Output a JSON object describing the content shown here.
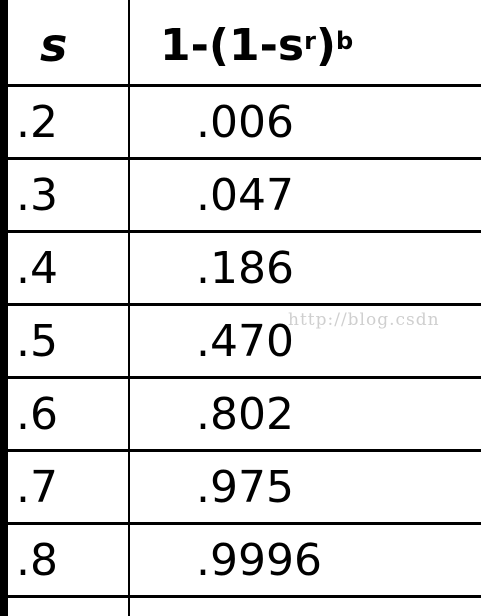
{
  "table": {
    "header_s": "s",
    "header_formula_prefix": "1-(1-s",
    "header_formula_sup_r": "r",
    "header_formula_close": ")",
    "header_formula_sup_b": "b",
    "rows": [
      {
        "s": ".2",
        "p": ".006"
      },
      {
        "s": ".3",
        "p": ".047"
      },
      {
        "s": ".4",
        "p": ".186"
      },
      {
        "s": ".5",
        "p": ".470"
      },
      {
        "s": ".6",
        "p": ".802"
      },
      {
        "s": ".7",
        "p": ".975"
      },
      {
        "s": ".8",
        "p": ".9996"
      }
    ]
  },
  "watermark": "http://blog.csdn"
}
